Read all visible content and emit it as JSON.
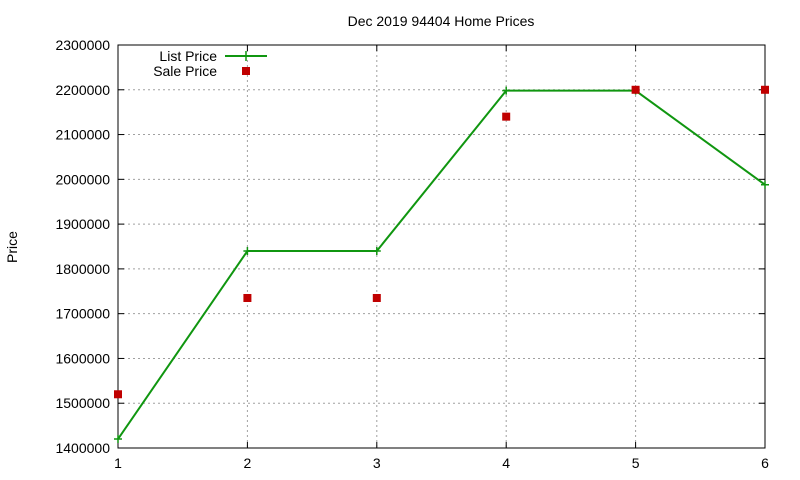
{
  "chart_data": {
    "type": "line",
    "title": "Dec 2019 94404 Home Prices",
    "xlabel": "",
    "ylabel": "Price",
    "x": [
      1,
      2,
      3,
      4,
      5,
      6
    ],
    "xlim": [
      1,
      6
    ],
    "ylim": [
      1400000,
      2300000
    ],
    "xticks": [
      "1",
      "2",
      "3",
      "4",
      "5",
      "6"
    ],
    "yticks": [
      "1400000",
      "1500000",
      "1600000",
      "1700000",
      "1800000",
      "1900000",
      "2000000",
      "2100000",
      "2200000",
      "2300000"
    ],
    "grid": true,
    "legend_position": "top-left",
    "series": [
      {
        "name": "List Price",
        "style": "line-with-plus-markers",
        "color": "#109610",
        "values": [
          1420000,
          1840000,
          1840000,
          2198000,
          2198000,
          1988000
        ]
      },
      {
        "name": "Sale Price",
        "style": "square-markers",
        "color": "#c00000",
        "values": [
          1520000,
          1735000,
          1735000,
          2140000,
          2200000,
          2200000
        ]
      }
    ]
  }
}
